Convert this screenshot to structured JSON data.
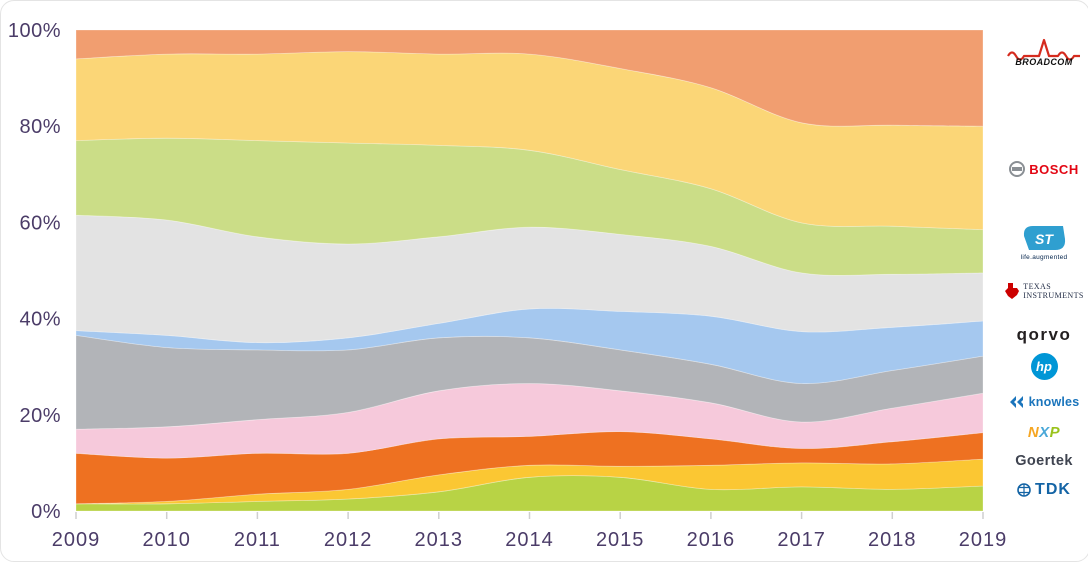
{
  "page": {
    "background": "#ffffff"
  },
  "chart_data": {
    "type": "area",
    "variant": "100%-stacked",
    "title": "",
    "xlabel": "",
    "ylabel": "",
    "x": [
      2009,
      2010,
      2011,
      2012,
      2013,
      2014,
      2015,
      2016,
      2017,
      2018,
      2019
    ],
    "x_labels": [
      "2009",
      "2010",
      "2011",
      "2012",
      "2013",
      "2014",
      "2015",
      "2016",
      "2017",
      "2018",
      "2019"
    ],
    "ylim": [
      0,
      100
    ],
    "yticks": [
      0,
      20,
      40,
      60,
      80,
      100
    ],
    "ytick_labels": [
      "0%",
      "20%",
      "40%",
      "60%",
      "80%",
      "100%"
    ],
    "grid": false,
    "legend_position": "right",
    "axis_label_color": "#4b3c68",
    "tick_mark_color": "#cfcfcf",
    "series": [
      {
        "name": "Broadcom",
        "color": "#f19e70",
        "values": [
          6,
          5,
          5,
          4.5,
          5,
          5,
          8,
          12,
          19.3,
          19.8,
          20
        ]
      },
      {
        "name": "Bosch",
        "color": "#fbd677",
        "values": [
          17,
          17.5,
          18,
          19,
          19,
          20,
          21,
          21,
          20.8,
          21,
          21.5
        ]
      },
      {
        "name": "ST",
        "color": "#cbdd87",
        "values": [
          15.5,
          17,
          20,
          21,
          19,
          16,
          13.5,
          12,
          10.4,
          10,
          9
        ]
      },
      {
        "name": "Texas Instruments",
        "color": "#e3e3e3",
        "values": [
          24,
          24,
          22,
          19.5,
          18,
          17,
          16,
          14.5,
          12.2,
          11,
          10
        ]
      },
      {
        "name": "Qorvo",
        "color": "#a5c8ef",
        "values": [
          1,
          2.5,
          1.5,
          2.5,
          3,
          6,
          8,
          10,
          10.8,
          9,
          7.3
        ]
      },
      {
        "name": "HP",
        "color": "#b2b4b8",
        "values": [
          19.5,
          16.5,
          14.5,
          13,
          11,
          9.5,
          8.5,
          8,
          8,
          7.8,
          7.7
        ]
      },
      {
        "name": "Knowles",
        "color": "#f6c9db",
        "values": [
          5,
          6.5,
          7,
          8.5,
          10,
          11,
          8.5,
          7.5,
          5.5,
          7,
          8.2
        ]
      },
      {
        "name": "NXP",
        "color": "#ee7121",
        "values": [
          10.5,
          9,
          8.5,
          7.5,
          7.5,
          6,
          7.2,
          5.5,
          3,
          4.6,
          5.5
        ]
      },
      {
        "name": "Goertek",
        "color": "#fbc733",
        "values": [
          0,
          0.5,
          1.5,
          2,
          3.5,
          2.5,
          2.3,
          5,
          5,
          5.3,
          5.6
        ]
      },
      {
        "name": "TDK",
        "color": "#b8d345",
        "values": [
          1.5,
          1.5,
          2,
          2.5,
          4,
          7,
          7,
          4.5,
          5,
          4.5,
          5.2
        ]
      }
    ]
  },
  "legend": {
    "items": [
      {
        "id": "broadcom",
        "label": "BROADCOM",
        "brand_color": "#d52b1e"
      },
      {
        "id": "bosch",
        "label": "BOSCH",
        "brand_color": "#e30613"
      },
      {
        "id": "st",
        "label": "ST",
        "tagline": "life.augmented",
        "brand_color": "#2f9fd0"
      },
      {
        "id": "ti",
        "label_line1": "TEXAS",
        "label_line2": "INSTRUMENTS",
        "brand_color": "#cc0000"
      },
      {
        "id": "qorvo",
        "label": "qorvo",
        "brand_color": "#231f20"
      },
      {
        "id": "hp",
        "label": "hp",
        "brand_color": "#0096d6"
      },
      {
        "id": "knowles",
        "label": "knowles",
        "brand_color": "#1b75bc"
      },
      {
        "id": "nxp",
        "letters": [
          "N",
          "X",
          "P"
        ],
        "letter_colors": [
          "#f5a623",
          "#4aa8d8",
          "#9ac31c"
        ]
      },
      {
        "id": "goertek",
        "label": "Goertek",
        "brand_color": "#3f4450"
      },
      {
        "id": "tdk",
        "label": "TDK",
        "brand_color": "#1464a5"
      }
    ]
  }
}
